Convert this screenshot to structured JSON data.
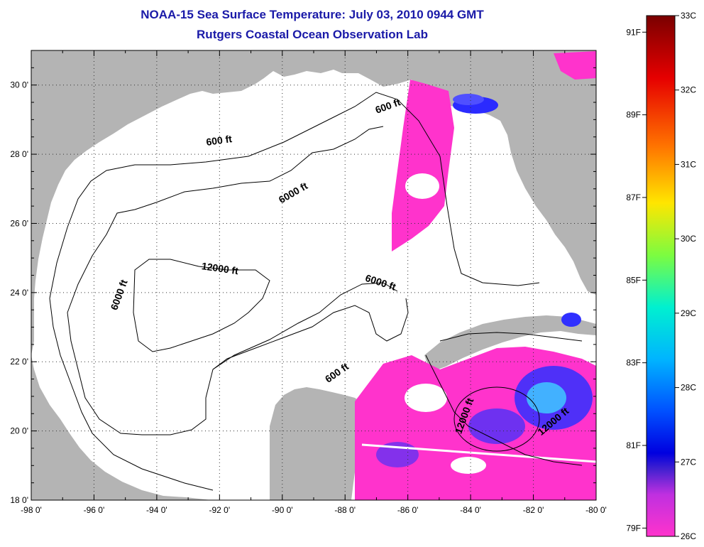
{
  "header": {
    "title": "NOAA-15 Sea Surface Temperature:  July 03, 2010 0944 GMT",
    "subtitle": "Rutgers Coastal Ocean Observation Lab"
  },
  "map": {
    "lon_range": [
      -98,
      -80
    ],
    "lat_range": [
      18,
      31
    ],
    "grid": "dotted",
    "lon_ticks": [
      "-98 0'",
      "-96 0'",
      "-94 0'",
      "-92 0'",
      "-90 0'",
      "-88 0'",
      "-86 0'",
      "-84 0'",
      "-82 0'",
      "-80 0'"
    ],
    "lat_ticks": [
      "18 0'",
      "20 0'",
      "22 0'",
      "24 0'",
      "26 0'",
      "28 0'",
      "30 0'"
    ],
    "land_color": "#b4b4b4",
    "water_color": "#ffffff",
    "contour_labels": [
      {
        "text": "600 ft",
        "lon": -92.0,
        "lat": 28.3
      },
      {
        "text": "600 ft",
        "lon": -86.6,
        "lat": 29.3
      },
      {
        "text": "6000 ft",
        "lon": -89.6,
        "lat": 26.8
      },
      {
        "text": "6000 ft",
        "lon": -95.1,
        "lat": 23.9
      },
      {
        "text": "12000 ft",
        "lon": -92.0,
        "lat": 24.6
      },
      {
        "text": "6000 ft",
        "lon": -86.9,
        "lat": 24.2
      },
      {
        "text": "600 ft",
        "lon": -88.2,
        "lat": 21.6
      },
      {
        "text": "12000 ft",
        "lon": -84.1,
        "lat": 20.4
      },
      {
        "text": "12000 ft",
        "lon": -81.3,
        "lat": 20.2
      }
    ]
  },
  "colorbar": {
    "celsius_labels": [
      "33C",
      "32C",
      "31C",
      "30C",
      "29C",
      "28C",
      "27C",
      "26C"
    ],
    "fahrenheit_labels": [
      "91F",
      "89F",
      "87F",
      "85F",
      "83F",
      "81F",
      "79F"
    ],
    "colors": [
      "#8b0000",
      "#e00000",
      "#ff5a00",
      "#ffa500",
      "#ffff00",
      "#90ee40",
      "#00ff80",
      "#00ffff",
      "#0090ff",
      "#0000ff",
      "#ff33cc"
    ]
  }
}
